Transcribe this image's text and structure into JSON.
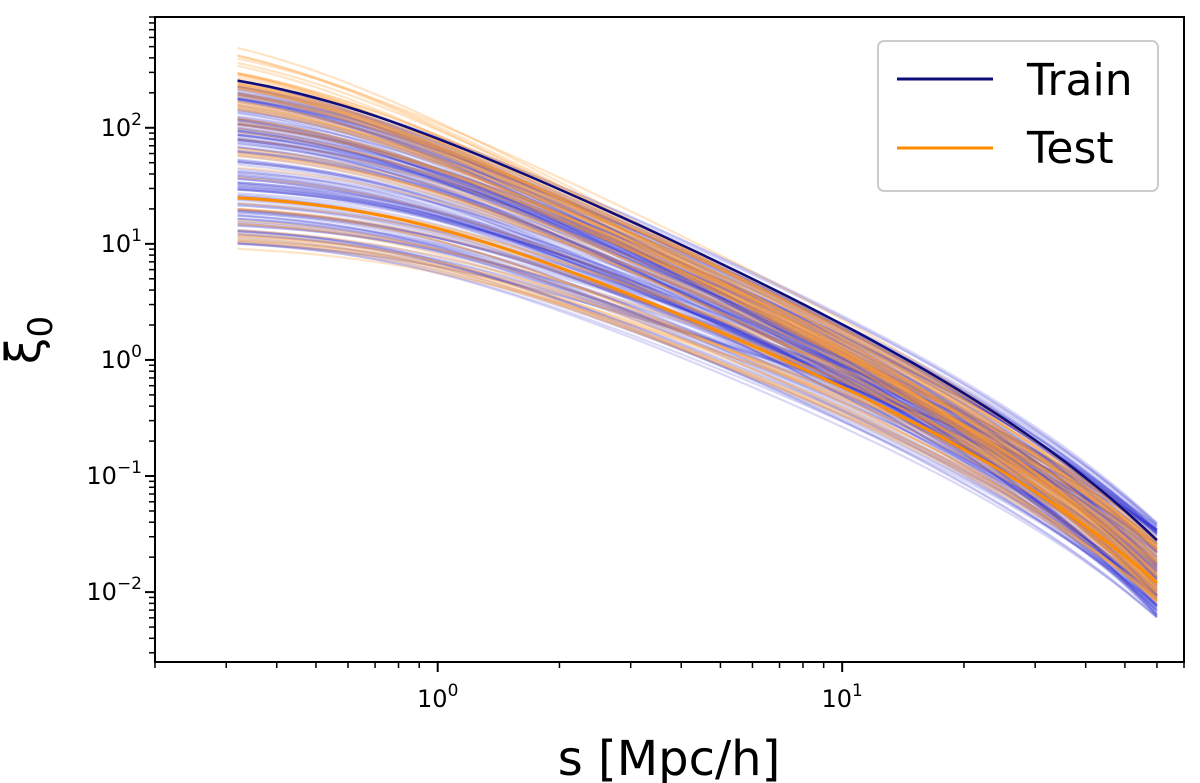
{
  "chart_data": {
    "type": "line",
    "title": "",
    "xlabel": "s [Mpc/h]",
    "ylabel": "ξ0",
    "ylabel_main": "ξ",
    "ylabel_sub": "0",
    "xscale": "log",
    "yscale": "log",
    "xlim": [
      0.2,
      70
    ],
    "ylim": [
      0.0025,
      900
    ],
    "grid": false,
    "legend_position": "top-right",
    "x_ticks": [
      {
        "value": 1,
        "base": "10",
        "exp": "0"
      },
      {
        "value": 10,
        "base": "10",
        "exp": "1"
      }
    ],
    "y_ticks": [
      {
        "value": 0.01,
        "base": "10",
        "exp": "−2"
      },
      {
        "value": 0.1,
        "base": "10",
        "exp": "−1"
      },
      {
        "value": 1,
        "base": "10",
        "exp": "0"
      },
      {
        "value": 10,
        "base": "10",
        "exp": "1"
      },
      {
        "value": 100,
        "base": "10",
        "exp": "2"
      }
    ],
    "s_range": [
      0.32,
      60
    ],
    "series": [
      {
        "name": "Train",
        "color": "#0c0c7a",
        "band_color": "#2a2ad0",
        "count": 170,
        "amp_range": [
          10,
          260
        ],
        "large_s_range": [
          0.006,
          0.04
        ],
        "highlight": {
          "amp": 255,
          "s_end": 0.028
        }
      },
      {
        "name": "Test",
        "color": "#ff8c00",
        "band_color": "#ff9b2e",
        "count": 70,
        "amp_range": [
          9,
          500
        ],
        "large_s_range": [
          0.008,
          0.03
        ],
        "highlight": {
          "amp": 25,
          "s_end": 0.012
        }
      }
    ],
    "legend": [
      {
        "label": "Train",
        "color": "#0c0c7a"
      },
      {
        "label": "Test",
        "color": "#ff8c00"
      }
    ]
  }
}
